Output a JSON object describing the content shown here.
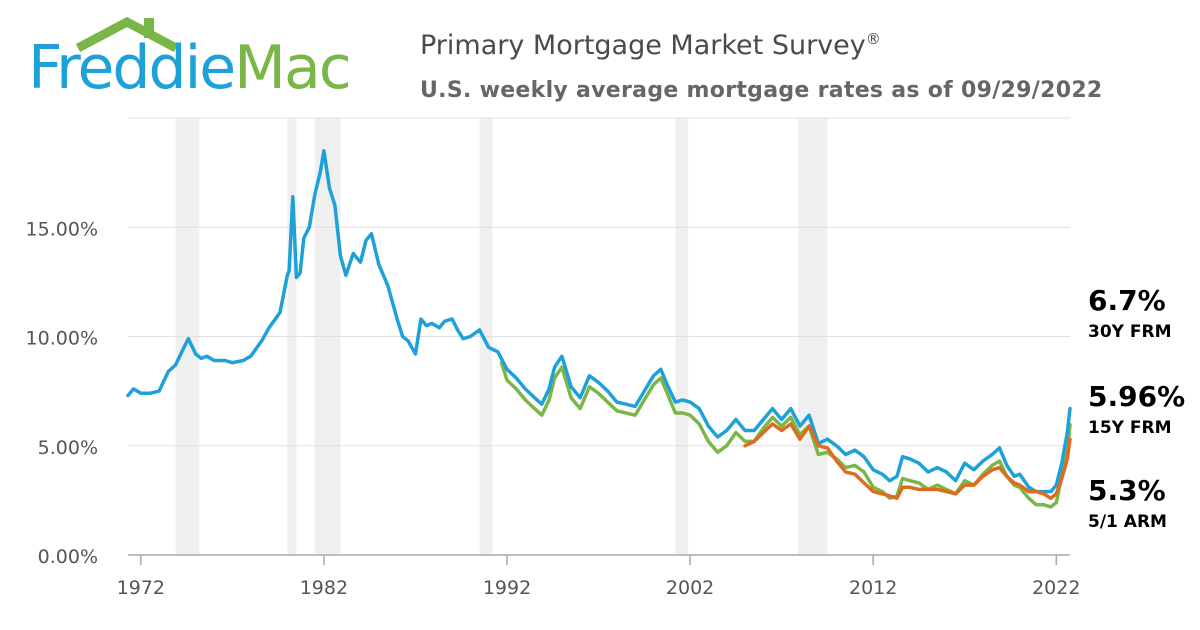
{
  "logo": {
    "word1": "Freddie",
    "word2": "Mac"
  },
  "header": {
    "title": "Primary Mortgage Market Survey",
    "title_mark": "®",
    "subtitle": "U.S. weekly average mortgage rates as of 09/29/2022"
  },
  "colors": {
    "frm30": "#1ea1d9",
    "frm15": "#7ab648",
    "arm51": "#de6b1e",
    "grid": "#e0e0e0",
    "recession": "#f0f0f0"
  },
  "end_labels": {
    "frm30": {
      "value": "6.7%",
      "name": "30Y FRM"
    },
    "frm15": {
      "value": "5.96%",
      "name": "15Y FRM"
    },
    "arm51": {
      "value": "5.3%",
      "name": "5/1 ARM"
    }
  },
  "chart_data": {
    "type": "line",
    "title": "Primary Mortgage Market Survey",
    "subtitle": "U.S. weekly average mortgage rates as of 09/29/2022",
    "xlim": [
      1971.3,
      2022.75
    ],
    "ylim": [
      0,
      20
    ],
    "y_ticks": [
      {
        "value": 0,
        "label": "0.00%"
      },
      {
        "value": 5,
        "label": "5.00%"
      },
      {
        "value": 10,
        "label": "10.00%"
      },
      {
        "value": 15,
        "label": "15.00%"
      }
    ],
    "x_ticks": [
      {
        "value": 1972,
        "label": "1972"
      },
      {
        "value": 1982,
        "label": "1982"
      },
      {
        "value": 1992,
        "label": "1992"
      },
      {
        "value": 2002,
        "label": "2002"
      },
      {
        "value": 2012,
        "label": "2012"
      },
      {
        "value": 2022,
        "label": "2022"
      }
    ],
    "recessions": [
      [
        1973.9,
        1975.2
      ],
      [
        1980.0,
        1980.5
      ],
      [
        1981.5,
        1982.9
      ],
      [
        1990.5,
        1991.2
      ],
      [
        2001.2,
        2001.9
      ],
      [
        2007.9,
        2009.5
      ]
    ],
    "series": [
      {
        "key": "frm30",
        "name": "30Y FRM",
        "x": [
          1971.3,
          1971.6,
          1972.0,
          1972.5,
          1973.0,
          1973.5,
          1973.9,
          1974.3,
          1974.6,
          1975.0,
          1975.3,
          1975.6,
          1976.0,
          1976.6,
          1977.0,
          1977.6,
          1978.0,
          1978.6,
          1979.0,
          1979.6,
          1980.0,
          1980.1,
          1980.3,
          1980.5,
          1980.7,
          1980.9,
          1981.2,
          1981.5,
          1981.8,
          1982.0,
          1982.3,
          1982.6,
          1982.9,
          1983.2,
          1983.6,
          1984.0,
          1984.3,
          1984.6,
          1985.0,
          1985.5,
          1986.0,
          1986.3,
          1986.6,
          1987.0,
          1987.3,
          1987.6,
          1987.9,
          1988.3,
          1988.6,
          1989.0,
          1989.3,
          1989.6,
          1990.0,
          1990.5,
          1991.0,
          1991.5,
          1992.0,
          1992.5,
          1993.0,
          1993.5,
          1993.9,
          1994.3,
          1994.6,
          1995.0,
          1995.5,
          1996.0,
          1996.5,
          1997.0,
          1997.5,
          1998.0,
          1998.5,
          1999.0,
          1999.5,
          2000.0,
          2000.4,
          2000.8,
          2001.2,
          2001.6,
          2002.0,
          2002.5,
          2003.0,
          2003.5,
          2004.0,
          2004.5,
          2005.0,
          2005.5,
          2006.0,
          2006.5,
          2007.0,
          2007.5,
          2008.0,
          2008.5,
          2009.0,
          2009.5,
          2010.0,
          2010.5,
          2011.0,
          2011.5,
          2012.0,
          2012.5,
          2012.9,
          2013.3,
          2013.6,
          2014.0,
          2014.5,
          2015.0,
          2015.5,
          2016.0,
          2016.5,
          2017.0,
          2017.5,
          2018.0,
          2018.5,
          2018.9,
          2019.3,
          2019.7,
          2020.0,
          2020.5,
          2020.9,
          2021.3,
          2021.7,
          2022.0,
          2022.3,
          2022.6,
          2022.75
        ],
        "y": [
          7.3,
          7.6,
          7.4,
          7.4,
          7.5,
          8.4,
          8.7,
          9.4,
          9.9,
          9.2,
          9.0,
          9.1,
          8.9,
          8.9,
          8.8,
          8.9,
          9.1,
          9.8,
          10.4,
          11.1,
          12.8,
          13.0,
          16.4,
          12.7,
          12.9,
          14.5,
          15.0,
          16.5,
          17.5,
          18.5,
          16.8,
          16.0,
          13.7,
          12.8,
          13.8,
          13.4,
          14.4,
          14.7,
          13.3,
          12.3,
          10.8,
          10.0,
          9.8,
          9.2,
          10.8,
          10.5,
          10.6,
          10.4,
          10.7,
          10.8,
          10.3,
          9.9,
          10.0,
          10.3,
          9.5,
          9.3,
          8.5,
          8.1,
          7.6,
          7.2,
          6.9,
          7.6,
          8.6,
          9.1,
          7.7,
          7.2,
          8.2,
          7.9,
          7.5,
          7.0,
          6.9,
          6.8,
          7.5,
          8.2,
          8.5,
          7.7,
          7.0,
          7.1,
          7.0,
          6.7,
          5.9,
          5.4,
          5.7,
          6.2,
          5.7,
          5.7,
          6.2,
          6.7,
          6.2,
          6.7,
          5.9,
          6.4,
          5.1,
          5.3,
          5.0,
          4.6,
          4.8,
          4.5,
          3.9,
          3.7,
          3.4,
          3.6,
          4.5,
          4.4,
          4.2,
          3.8,
          4.0,
          3.8,
          3.4,
          4.2,
          3.9,
          4.3,
          4.6,
          4.9,
          4.1,
          3.6,
          3.7,
          3.1,
          2.9,
          2.9,
          2.9,
          3.2,
          4.2,
          5.6,
          6.7
        ]
      },
      {
        "key": "frm15",
        "name": "15Y FRM",
        "x": [
          1991.7,
          1992.0,
          1992.5,
          1993.0,
          1993.5,
          1993.9,
          1994.3,
          1994.6,
          1995.0,
          1995.5,
          1996.0,
          1996.5,
          1997.0,
          1997.5,
          1998.0,
          1998.5,
          1999.0,
          1999.5,
          2000.0,
          2000.4,
          2000.8,
          2001.2,
          2001.6,
          2002.0,
          2002.5,
          2003.0,
          2003.5,
          2004.0,
          2004.5,
          2005.0,
          2005.5,
          2006.0,
          2006.5,
          2007.0,
          2007.5,
          2008.0,
          2008.5,
          2009.0,
          2009.5,
          2010.0,
          2010.5,
          2011.0,
          2011.5,
          2012.0,
          2012.5,
          2012.9,
          2013.3,
          2013.6,
          2014.0,
          2014.5,
          2015.0,
          2015.5,
          2016.0,
          2016.5,
          2017.0,
          2017.5,
          2018.0,
          2018.5,
          2018.9,
          2019.3,
          2019.7,
          2020.0,
          2020.5,
          2020.9,
          2021.3,
          2021.7,
          2022.0,
          2022.3,
          2022.6,
          2022.75
        ],
        "y": [
          8.8,
          8.0,
          7.6,
          7.1,
          6.7,
          6.4,
          7.1,
          8.1,
          8.6,
          7.2,
          6.7,
          7.7,
          7.4,
          7.0,
          6.6,
          6.5,
          6.4,
          7.1,
          7.8,
          8.1,
          7.3,
          6.5,
          6.5,
          6.4,
          6.0,
          5.2,
          4.7,
          5.0,
          5.6,
          5.2,
          5.2,
          5.8,
          6.3,
          5.9,
          6.3,
          5.5,
          5.9,
          4.6,
          4.7,
          4.4,
          4.0,
          4.1,
          3.8,
          3.1,
          2.9,
          2.6,
          2.7,
          3.5,
          3.4,
          3.3,
          3.0,
          3.2,
          3.0,
          2.8,
          3.4,
          3.2,
          3.7,
          4.1,
          4.3,
          3.6,
          3.2,
          3.1,
          2.6,
          2.3,
          2.3,
          2.2,
          2.4,
          3.6,
          4.7,
          5.96
        ]
      },
      {
        "key": "arm51",
        "name": "5/1 ARM",
        "x": [
          2005.0,
          2005.5,
          2006.0,
          2006.5,
          2007.0,
          2007.5,
          2008.0,
          2008.5,
          2009.0,
          2009.5,
          2010.0,
          2010.5,
          2011.0,
          2011.5,
          2012.0,
          2012.5,
          2012.9,
          2013.3,
          2013.6,
          2014.0,
          2014.5,
          2015.0,
          2015.5,
          2016.0,
          2016.5,
          2017.0,
          2017.5,
          2018.0,
          2018.5,
          2018.9,
          2019.3,
          2019.7,
          2020.0,
          2020.5,
          2020.9,
          2021.3,
          2021.7,
          2022.0,
          2022.3,
          2022.6,
          2022.75
        ],
        "y": [
          5.0,
          5.2,
          5.6,
          6.0,
          5.7,
          6.0,
          5.3,
          5.9,
          5.0,
          4.9,
          4.3,
          3.8,
          3.7,
          3.3,
          2.9,
          2.8,
          2.7,
          2.6,
          3.1,
          3.1,
          3.0,
          3.0,
          3.0,
          2.9,
          2.8,
          3.2,
          3.2,
          3.6,
          3.9,
          4.0,
          3.6,
          3.3,
          3.2,
          2.9,
          2.9,
          2.8,
          2.6,
          2.8,
          3.5,
          4.4,
          5.3
        ]
      }
    ]
  }
}
